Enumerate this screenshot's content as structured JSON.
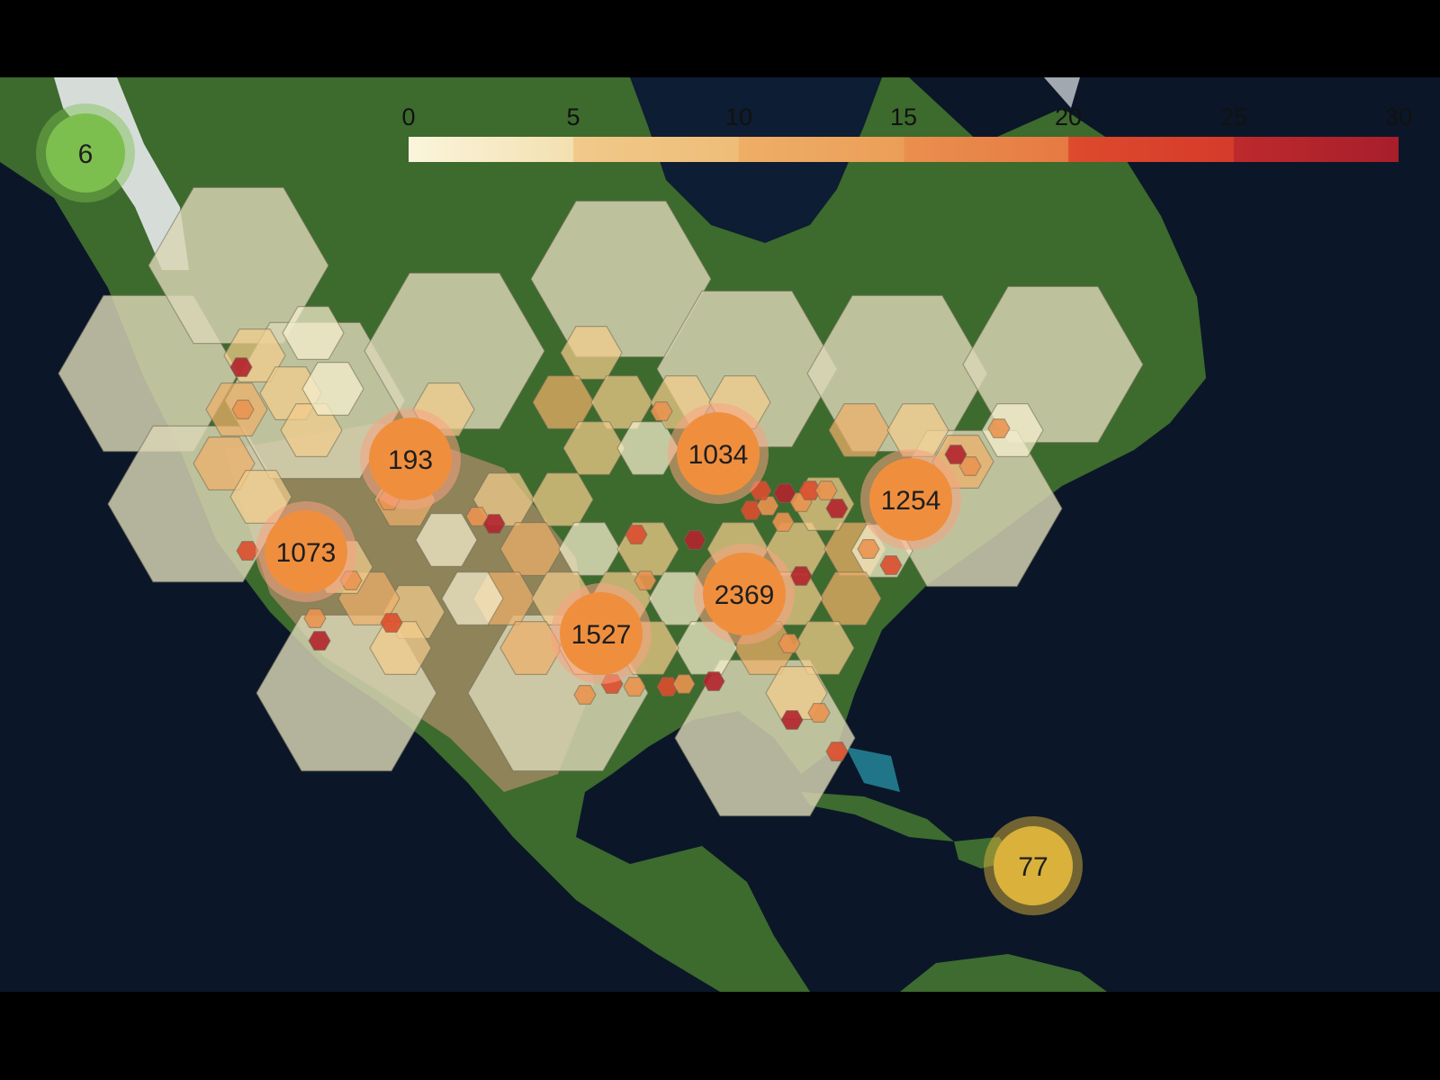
{
  "colors": {
    "background": "#000000",
    "ocean": "#0b1728",
    "land_green": "#3f6a2e",
    "land_dry": "#9a8660",
    "snow": "#e9ecee",
    "hex_outline": "#6e6a55",
    "cluster_orange": "#ef8f3e",
    "cluster_halo": "#f7a382",
    "cluster_green": "#7dbf4f",
    "cluster_yellow": "#d9b13b"
  },
  "legend": {
    "ticks": [
      "0",
      "5",
      "10",
      "15",
      "20",
      "25",
      "30"
    ],
    "range": [
      0,
      30
    ],
    "bin_colors": [
      "#f6f0cf",
      "#f2cd8c",
      "#eeb06a",
      "#ea9350",
      "#dc4e2e",
      "#b3242c"
    ]
  },
  "clusters": [
    {
      "id": "cluster-1",
      "label": "6",
      "color": "green"
    },
    {
      "id": "cluster-2",
      "label": "193",
      "color": "orange"
    },
    {
      "id": "cluster-3",
      "label": "1034",
      "color": "orange"
    },
    {
      "id": "cluster-4",
      "label": "1254",
      "color": "orange"
    },
    {
      "id": "cluster-5",
      "label": "1073",
      "color": "orange"
    },
    {
      "id": "cluster-6",
      "label": "2369",
      "color": "orange"
    },
    {
      "id": "cluster-7",
      "label": "1527",
      "color": "orange"
    },
    {
      "id": "cluster-8",
      "label": "77",
      "color": "yellow"
    }
  ]
}
